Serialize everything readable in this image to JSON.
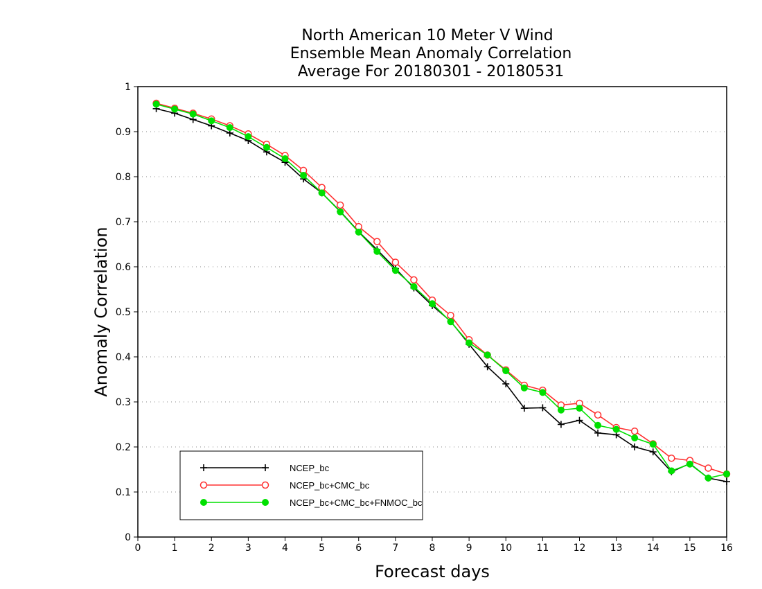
{
  "chart_data": {
    "type": "line",
    "title_lines": [
      "North American 10 Meter V Wind",
      "Ensemble Mean Anomaly Correlation",
      "Average For 20180301 - 20180531"
    ],
    "xlabel": "Forecast days",
    "ylabel": "Anomaly Correlation",
    "xlim": [
      0,
      16
    ],
    "ylim": [
      0,
      1
    ],
    "xticks": [
      "0",
      "1",
      "2",
      "3",
      "4",
      "5",
      "6",
      "7",
      "8",
      "9",
      "10",
      "11",
      "12",
      "13",
      "14",
      "15",
      "16"
    ],
    "yticks": [
      "0",
      "0.1",
      "0.2",
      "0.3",
      "0.4",
      "0.5",
      "0.6",
      "0.7",
      "0.8",
      "0.9",
      "1"
    ],
    "grid": "horizontal dotted",
    "legend_position": "bottom-left",
    "x": [
      0.5,
      1,
      1.5,
      2,
      2.5,
      3,
      3.5,
      4,
      4.5,
      5,
      5.5,
      6,
      6.5,
      7,
      7.5,
      8,
      8.5,
      9,
      9.5,
      10,
      10.5,
      11,
      11.5,
      12,
      12.5,
      13,
      13.5,
      14,
      14.5,
      15,
      15.5,
      16
    ],
    "series": [
      {
        "name": "NCEP_bc",
        "color": "#000000",
        "marker": "plus",
        "values": [
          0.951,
          0.941,
          0.927,
          0.913,
          0.897,
          0.88,
          0.855,
          0.832,
          0.795,
          0.764,
          0.723,
          0.678,
          0.638,
          0.596,
          0.553,
          0.514,
          0.479,
          0.428,
          0.378,
          0.34,
          0.286,
          0.287,
          0.25,
          0.259,
          0.231,
          0.227,
          0.2,
          0.189,
          0.145,
          0.163,
          0.131,
          0.123
        ]
      },
      {
        "name": "NCEP_bc+CMC_bc",
        "color": "#ff3030",
        "marker": "open-circle",
        "values": [
          0.963,
          0.952,
          0.941,
          0.928,
          0.913,
          0.895,
          0.872,
          0.847,
          0.814,
          0.776,
          0.737,
          0.689,
          0.656,
          0.61,
          0.571,
          0.526,
          0.492,
          0.438,
          0.404,
          0.371,
          0.337,
          0.326,
          0.293,
          0.297,
          0.271,
          0.243,
          0.235,
          0.207,
          0.175,
          0.17,
          0.153,
          0.14
        ]
      },
      {
        "name": "NCEP_bc+CMC_bc+FNMOC_bc",
        "color": "#00e000",
        "marker": "filled-circle",
        "values": [
          0.961,
          0.95,
          0.939,
          0.924,
          0.909,
          0.889,
          0.865,
          0.84,
          0.803,
          0.764,
          0.722,
          0.677,
          0.634,
          0.592,
          0.556,
          0.518,
          0.478,
          0.431,
          0.404,
          0.369,
          0.331,
          0.321,
          0.282,
          0.286,
          0.248,
          0.239,
          0.22,
          0.206,
          0.147,
          0.162,
          0.131,
          0.14
        ]
      }
    ]
  }
}
